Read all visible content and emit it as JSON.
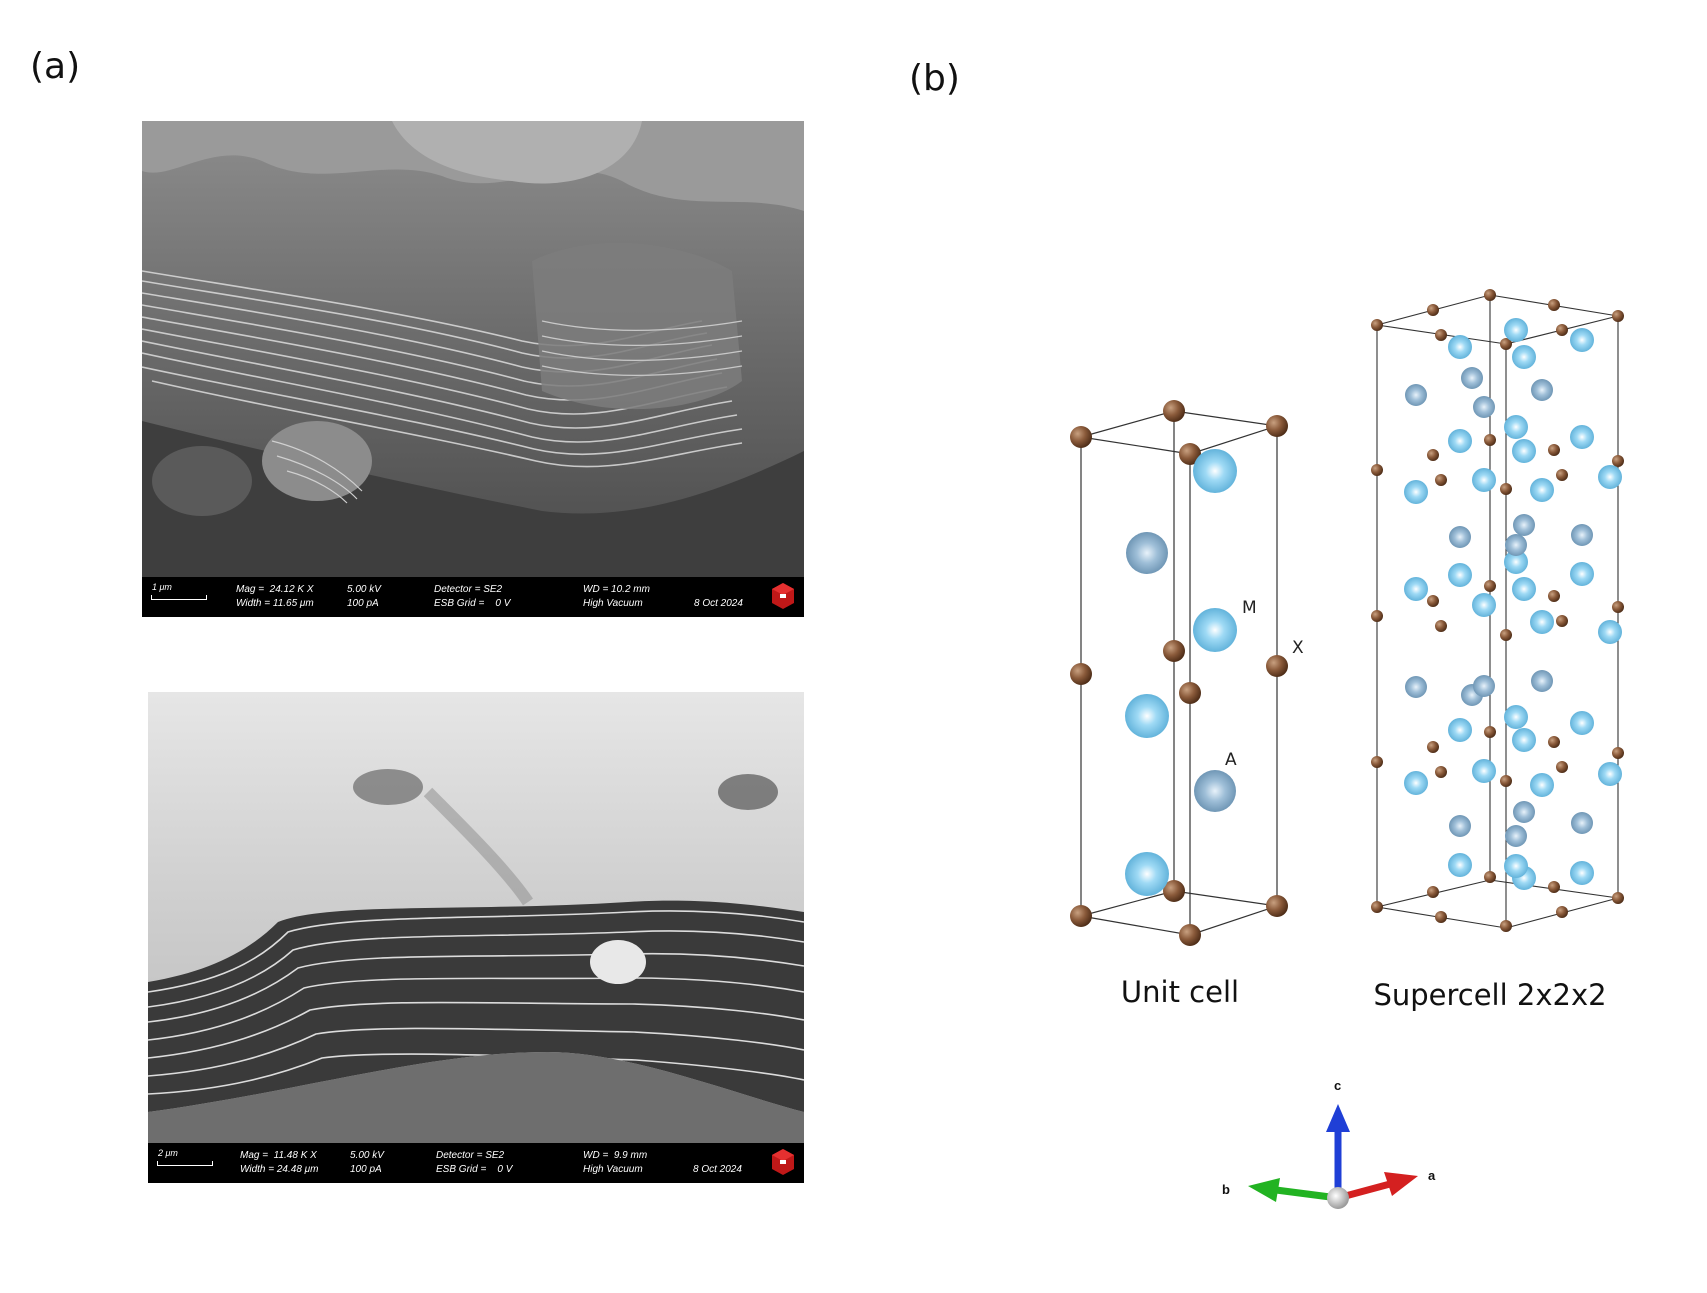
{
  "panels": {
    "a": "(a)",
    "b": "(b)"
  },
  "sem_top": {
    "scale_label": "1 μm",
    "mag": "Mag =  24.12 K X",
    "width": "Width = 11.65 μm",
    "voltage": "5.00 kV",
    "current": "100 pA",
    "detector": "Detector = SE2",
    "esb_grid": "ESB Grid =    0 V",
    "wd": "WD = 10.2 mm",
    "vacuum": "High Vacuum",
    "date": "8 Oct 2024"
  },
  "sem_bottom": {
    "scale_label": "2 μm",
    "mag": "Mag =  11.48 K X",
    "width": "Width = 24.48 μm",
    "voltage": "5.00 kV",
    "current": "100 pA",
    "detector": "Detector = SE2",
    "esb_grid": "ESB Grid =    0 V",
    "wd": "WD =  9.9 mm",
    "vacuum": "High Vacuum",
    "date": "8 Oct 2024"
  },
  "structure": {
    "site_labels": {
      "m": "M",
      "x": "X",
      "a": "A"
    },
    "unit_cell_caption": "Unit cell",
    "supercell_caption": "Supercell 2x2x2",
    "axes": {
      "a": "a",
      "b": "b",
      "c": "c"
    },
    "colors": {
      "x_atom": "#8a5a3a",
      "m_atom": "#6ec4ea",
      "a_atom": "#7ba7c8",
      "axis_a": "#d42020",
      "axis_b": "#22b322",
      "axis_c": "#1f3fd6"
    }
  }
}
